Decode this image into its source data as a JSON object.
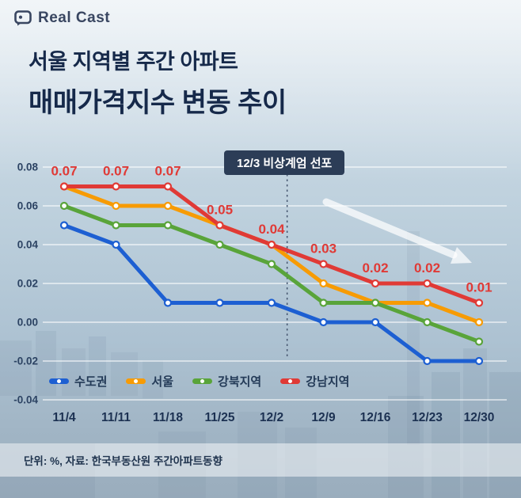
{
  "logo": {
    "text": "Real Cast"
  },
  "title": {
    "line1": "서울 지역별 주간 아파트",
    "line2": "매매가격지수 변동 추이"
  },
  "annotation": {
    "label": "12/3 비상계엄 선포"
  },
  "footer": {
    "note": "단위: %, 자료: 한국부동산원 주간아파트동향"
  },
  "colors": {
    "title_navy": "#16294a",
    "annotation_bg": "#2c3d57",
    "grid_line": "rgba(255,255,255,0.85)"
  },
  "chart_data": {
    "type": "line",
    "title": "서울 지역별 주간 아파트 매매가격지수 변동 추이",
    "categories": [
      "11/4",
      "11/11",
      "11/18",
      "11/25",
      "12/2",
      "12/9",
      "12/16",
      "12/23",
      "12/30"
    ],
    "series": [
      {
        "name": "수도권",
        "color": "#1d5fd2",
        "values": [
          0.05,
          0.04,
          0.01,
          0.01,
          0.01,
          0.0,
          0.0,
          -0.02,
          -0.02
        ]
      },
      {
        "name": "서울",
        "color": "#f79b04",
        "values": [
          0.07,
          0.06,
          0.06,
          0.05,
          0.04,
          0.02,
          0.01,
          0.01,
          0.0
        ]
      },
      {
        "name": "강북지역",
        "color": "#59a43a",
        "values": [
          0.06,
          0.05,
          0.05,
          0.04,
          0.03,
          0.01,
          0.01,
          0.0,
          -0.01
        ]
      },
      {
        "name": "강남지역",
        "color": "#e03a36",
        "values": [
          0.07,
          0.07,
          0.07,
          0.05,
          0.04,
          0.03,
          0.02,
          0.02,
          0.01
        ],
        "labeled": true
      }
    ],
    "value_labels": [
      "0.07",
      "0.07",
      "0.07",
      "0.05",
      "0.04",
      "0.03",
      "0.02",
      "0.02",
      "0.01"
    ],
    "yticks": [
      0.08,
      0.06,
      0.04,
      0.02,
      0.0,
      -0.02,
      -0.04
    ],
    "ylim": [
      -0.04,
      0.08
    ],
    "grid": "horizontal",
    "legend_position": "bottom-left",
    "annotation_line_after": "12/2"
  }
}
